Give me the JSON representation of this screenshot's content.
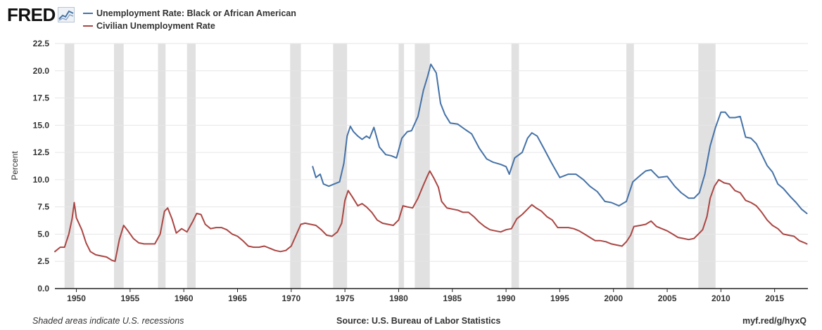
{
  "brand": {
    "logo_text": "FRED"
  },
  "legend": [
    {
      "label": "Unemployment Rate: Black or African American",
      "color": "#4572a7"
    },
    {
      "label": "Civilian Unemployment Rate",
      "color": "#aa4643"
    }
  ],
  "footer": {
    "note": "Shaded areas indicate U.S. recessions",
    "source": "Source: U.S. Bureau of Labor Statistics",
    "link": "myf.red/g/hyxQ"
  },
  "chart_data": {
    "type": "line",
    "title": "",
    "xlabel": "",
    "ylabel": "Percent",
    "xlim": [
      1948,
      2018.1
    ],
    "ylim": [
      0,
      22.5
    ],
    "x_ticks": [
      1950,
      1955,
      1960,
      1965,
      1970,
      1975,
      1980,
      1985,
      1990,
      1995,
      2000,
      2005,
      2010,
      2015
    ],
    "y_ticks": [
      0.0,
      2.5,
      5.0,
      7.5,
      10.0,
      12.5,
      15.0,
      17.5,
      20.0,
      22.5
    ],
    "grid": "horizontal",
    "legend_position": "top-left",
    "recessions": [
      [
        1948.9,
        1949.8
      ],
      [
        1953.5,
        1954.4
      ],
      [
        1957.6,
        1958.3
      ],
      [
        1960.3,
        1961.1
      ],
      [
        1969.9,
        1970.9
      ],
      [
        1973.9,
        1975.2
      ],
      [
        1980.0,
        1980.5
      ],
      [
        1981.5,
        1982.9
      ],
      [
        1990.5,
        1991.2
      ],
      [
        2001.2,
        2001.9
      ],
      [
        2007.9,
        2009.5
      ]
    ],
    "series": [
      {
        "name": "Unemployment Rate: Black or African American",
        "color": "#4572a7",
        "points": [
          [
            1972.0,
            11.2
          ],
          [
            1972.3,
            10.2
          ],
          [
            1972.7,
            10.5
          ],
          [
            1973.0,
            9.6
          ],
          [
            1973.5,
            9.4
          ],
          [
            1974.0,
            9.6
          ],
          [
            1974.5,
            9.8
          ],
          [
            1974.9,
            11.5
          ],
          [
            1975.2,
            14.0
          ],
          [
            1975.5,
            14.9
          ],
          [
            1975.8,
            14.4
          ],
          [
            1976.2,
            14.0
          ],
          [
            1976.6,
            13.7
          ],
          [
            1977.0,
            14.0
          ],
          [
            1977.3,
            13.8
          ],
          [
            1977.7,
            14.8
          ],
          [
            1978.2,
            13.0
          ],
          [
            1978.8,
            12.3
          ],
          [
            1979.3,
            12.2
          ],
          [
            1979.8,
            12.0
          ],
          [
            1980.3,
            13.8
          ],
          [
            1980.8,
            14.4
          ],
          [
            1981.2,
            14.5
          ],
          [
            1981.8,
            15.8
          ],
          [
            1982.3,
            18.2
          ],
          [
            1982.7,
            19.5
          ],
          [
            1983.0,
            20.6
          ],
          [
            1983.5,
            19.8
          ],
          [
            1983.9,
            17.0
          ],
          [
            1984.3,
            16.0
          ],
          [
            1984.8,
            15.2
          ],
          [
            1985.5,
            15.1
          ],
          [
            1986.2,
            14.6
          ],
          [
            1986.8,
            14.2
          ],
          [
            1987.5,
            12.9
          ],
          [
            1988.2,
            11.9
          ],
          [
            1988.8,
            11.6
          ],
          [
            1989.5,
            11.4
          ],
          [
            1990.0,
            11.2
          ],
          [
            1990.3,
            10.5
          ],
          [
            1990.8,
            12.0
          ],
          [
            1991.5,
            12.5
          ],
          [
            1992.0,
            13.8
          ],
          [
            1992.4,
            14.3
          ],
          [
            1992.9,
            14.0
          ],
          [
            1993.5,
            12.9
          ],
          [
            1994.2,
            11.6
          ],
          [
            1995.0,
            10.2
          ],
          [
            1995.8,
            10.5
          ],
          [
            1996.5,
            10.5
          ],
          [
            1997.2,
            10.0
          ],
          [
            1997.8,
            9.4
          ],
          [
            1998.5,
            8.9
          ],
          [
            1999.2,
            8.0
          ],
          [
            1999.8,
            7.9
          ],
          [
            2000.5,
            7.6
          ],
          [
            2001.2,
            8.0
          ],
          [
            2001.8,
            9.8
          ],
          [
            2002.5,
            10.4
          ],
          [
            2003.0,
            10.8
          ],
          [
            2003.5,
            10.9
          ],
          [
            2004.2,
            10.2
          ],
          [
            2005.0,
            10.3
          ],
          [
            2005.7,
            9.4
          ],
          [
            2006.3,
            8.8
          ],
          [
            2007.0,
            8.3
          ],
          [
            2007.5,
            8.3
          ],
          [
            2008.0,
            8.8
          ],
          [
            2008.5,
            10.5
          ],
          [
            2009.0,
            13.1
          ],
          [
            2009.5,
            14.8
          ],
          [
            2010.0,
            16.2
          ],
          [
            2010.4,
            16.2
          ],
          [
            2010.8,
            15.7
          ],
          [
            2011.3,
            15.7
          ],
          [
            2011.8,
            15.8
          ],
          [
            2012.3,
            13.9
          ],
          [
            2012.8,
            13.8
          ],
          [
            2013.3,
            13.3
          ],
          [
            2013.8,
            12.3
          ],
          [
            2014.3,
            11.3
          ],
          [
            2014.8,
            10.7
          ],
          [
            2015.3,
            9.6
          ],
          [
            2015.8,
            9.2
          ],
          [
            2016.5,
            8.4
          ],
          [
            2017.0,
            7.9
          ],
          [
            2017.5,
            7.3
          ],
          [
            2018.0,
            6.9
          ]
        ]
      },
      {
        "name": "Civilian Unemployment Rate",
        "color": "#aa4643",
        "points": [
          [
            1948.0,
            3.4
          ],
          [
            1948.5,
            3.8
          ],
          [
            1948.9,
            3.8
          ],
          [
            1949.3,
            5.0
          ],
          [
            1949.6,
            6.4
          ],
          [
            1949.8,
            7.9
          ],
          [
            1950.0,
            6.5
          ],
          [
            1950.5,
            5.4
          ],
          [
            1950.9,
            4.2
          ],
          [
            1951.3,
            3.4
          ],
          [
            1951.8,
            3.1
          ],
          [
            1952.3,
            3.0
          ],
          [
            1952.8,
            2.9
          ],
          [
            1953.3,
            2.6
          ],
          [
            1953.6,
            2.5
          ],
          [
            1954.0,
            4.5
          ],
          [
            1954.4,
            5.8
          ],
          [
            1954.8,
            5.3
          ],
          [
            1955.3,
            4.6
          ],
          [
            1955.8,
            4.2
          ],
          [
            1956.3,
            4.1
          ],
          [
            1956.8,
            4.1
          ],
          [
            1957.3,
            4.1
          ],
          [
            1957.8,
            5.0
          ],
          [
            1958.2,
            7.1
          ],
          [
            1958.5,
            7.4
          ],
          [
            1958.9,
            6.4
          ],
          [
            1959.3,
            5.1
          ],
          [
            1959.8,
            5.5
          ],
          [
            1960.3,
            5.2
          ],
          [
            1960.8,
            6.1
          ],
          [
            1961.2,
            6.9
          ],
          [
            1961.6,
            6.8
          ],
          [
            1962.0,
            5.9
          ],
          [
            1962.5,
            5.5
          ],
          [
            1963.0,
            5.6
          ],
          [
            1963.5,
            5.6
          ],
          [
            1964.0,
            5.4
          ],
          [
            1964.5,
            5.0
          ],
          [
            1965.0,
            4.8
          ],
          [
            1965.5,
            4.4
          ],
          [
            1966.0,
            3.9
          ],
          [
            1966.5,
            3.8
          ],
          [
            1967.0,
            3.8
          ],
          [
            1967.5,
            3.9
          ],
          [
            1968.0,
            3.7
          ],
          [
            1968.5,
            3.5
          ],
          [
            1969.0,
            3.4
          ],
          [
            1969.5,
            3.5
          ],
          [
            1970.0,
            3.9
          ],
          [
            1970.5,
            5.0
          ],
          [
            1970.9,
            5.9
          ],
          [
            1971.3,
            6.0
          ],
          [
            1971.8,
            5.9
          ],
          [
            1972.3,
            5.8
          ],
          [
            1972.8,
            5.4
          ],
          [
            1973.3,
            4.9
          ],
          [
            1973.8,
            4.8
          ],
          [
            1974.3,
            5.2
          ],
          [
            1974.7,
            6.0
          ],
          [
            1975.0,
            8.1
          ],
          [
            1975.3,
            9.0
          ],
          [
            1975.7,
            8.4
          ],
          [
            1976.2,
            7.6
          ],
          [
            1976.6,
            7.8
          ],
          [
            1977.0,
            7.5
          ],
          [
            1977.5,
            7.0
          ],
          [
            1978.0,
            6.3
          ],
          [
            1978.5,
            6.0
          ],
          [
            1979.0,
            5.9
          ],
          [
            1979.5,
            5.8
          ],
          [
            1980.0,
            6.3
          ],
          [
            1980.4,
            7.6
          ],
          [
            1980.8,
            7.5
          ],
          [
            1981.3,
            7.4
          ],
          [
            1981.8,
            8.3
          ],
          [
            1982.3,
            9.5
          ],
          [
            1982.7,
            10.4
          ],
          [
            1982.9,
            10.8
          ],
          [
            1983.3,
            10.1
          ],
          [
            1983.7,
            9.3
          ],
          [
            1984.0,
            8.0
          ],
          [
            1984.5,
            7.4
          ],
          [
            1985.0,
            7.3
          ],
          [
            1985.5,
            7.2
          ],
          [
            1986.0,
            7.0
          ],
          [
            1986.5,
            7.0
          ],
          [
            1987.0,
            6.6
          ],
          [
            1987.5,
            6.1
          ],
          [
            1988.0,
            5.7
          ],
          [
            1988.5,
            5.4
          ],
          [
            1989.0,
            5.3
          ],
          [
            1989.5,
            5.2
          ],
          [
            1990.0,
            5.4
          ],
          [
            1990.5,
            5.5
          ],
          [
            1991.0,
            6.4
          ],
          [
            1991.5,
            6.8
          ],
          [
            1992.0,
            7.3
          ],
          [
            1992.4,
            7.7
          ],
          [
            1992.8,
            7.4
          ],
          [
            1993.3,
            7.1
          ],
          [
            1993.8,
            6.6
          ],
          [
            1994.3,
            6.3
          ],
          [
            1994.8,
            5.6
          ],
          [
            1995.3,
            5.6
          ],
          [
            1995.8,
            5.6
          ],
          [
            1996.3,
            5.5
          ],
          [
            1996.8,
            5.3
          ],
          [
            1997.3,
            5.0
          ],
          [
            1997.8,
            4.7
          ],
          [
            1998.3,
            4.4
          ],
          [
            1998.8,
            4.4
          ],
          [
            1999.3,
            4.3
          ],
          [
            1999.8,
            4.1
          ],
          [
            2000.3,
            4.0
          ],
          [
            2000.8,
            3.9
          ],
          [
            2001.2,
            4.3
          ],
          [
            2001.6,
            4.9
          ],
          [
            2001.9,
            5.7
          ],
          [
            2002.5,
            5.8
          ],
          [
            2003.0,
            5.9
          ],
          [
            2003.5,
            6.2
          ],
          [
            2004.0,
            5.7
          ],
          [
            2004.5,
            5.5
          ],
          [
            2005.0,
            5.3
          ],
          [
            2005.5,
            5.0
          ],
          [
            2006.0,
            4.7
          ],
          [
            2006.5,
            4.6
          ],
          [
            2007.0,
            4.5
          ],
          [
            2007.5,
            4.6
          ],
          [
            2007.9,
            5.0
          ],
          [
            2008.3,
            5.4
          ],
          [
            2008.7,
            6.6
          ],
          [
            2009.0,
            8.3
          ],
          [
            2009.4,
            9.4
          ],
          [
            2009.8,
            10.0
          ],
          [
            2010.3,
            9.7
          ],
          [
            2010.8,
            9.6
          ],
          [
            2011.3,
            9.0
          ],
          [
            2011.8,
            8.8
          ],
          [
            2012.3,
            8.1
          ],
          [
            2012.8,
            7.9
          ],
          [
            2013.3,
            7.6
          ],
          [
            2013.8,
            7.0
          ],
          [
            2014.3,
            6.3
          ],
          [
            2014.8,
            5.8
          ],
          [
            2015.3,
            5.5
          ],
          [
            2015.8,
            5.0
          ],
          [
            2016.3,
            4.9
          ],
          [
            2016.8,
            4.8
          ],
          [
            2017.3,
            4.4
          ],
          [
            2017.8,
            4.2
          ],
          [
            2018.0,
            4.1
          ]
        ]
      }
    ]
  }
}
